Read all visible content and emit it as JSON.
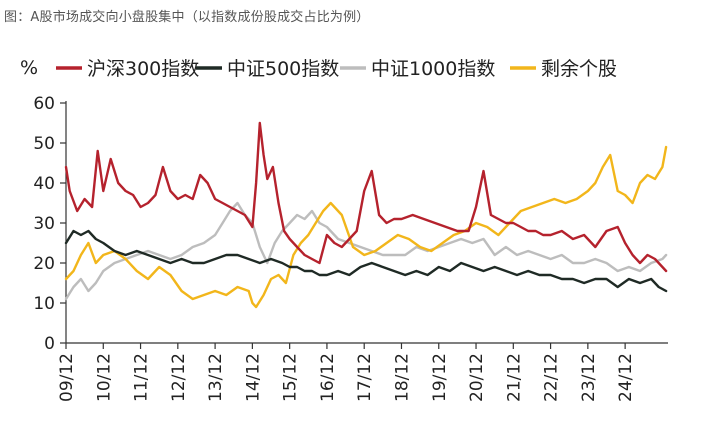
{
  "caption": "图：A股市场成交向小盘股集中（以指数成份股成交占比为例）",
  "chart_data": {
    "type": "line",
    "title": "",
    "ylabel": "%",
    "xlabel": "",
    "ylim": [
      0,
      60
    ],
    "yticks": [
      0,
      10,
      20,
      30,
      40,
      50,
      60
    ],
    "xlim": [
      2009.0,
      2025.15
    ],
    "xticks": [
      "09/12",
      "10/12",
      "11/12",
      "12/12",
      "13/12",
      "14/12",
      "15/12",
      "16/12",
      "17/12",
      "18/12",
      "19/12",
      "20/12",
      "21/12",
      "22/12",
      "23/12",
      "24/12"
    ],
    "grid": false,
    "legend_position": "top",
    "series": [
      {
        "name": "沪深300指数",
        "color": "#b5222d",
        "x": [
          2009.0,
          2009.1,
          2009.3,
          2009.5,
          2009.7,
          2009.85,
          2010.0,
          2010.2,
          2010.4,
          2010.6,
          2010.8,
          2011.0,
          2011.2,
          2011.4,
          2011.6,
          2011.8,
          2012.0,
          2012.2,
          2012.4,
          2012.6,
          2012.8,
          2013.0,
          2013.2,
          2013.4,
          2013.6,
          2013.8,
          2014.0,
          2014.1,
          2014.2,
          2014.3,
          2014.4,
          2014.55,
          2014.7,
          2014.85,
          2015.0,
          2015.2,
          2015.4,
          2015.6,
          2015.8,
          2016.0,
          2016.2,
          2016.4,
          2016.6,
          2016.8,
          2017.0,
          2017.2,
          2017.4,
          2017.6,
          2017.8,
          2018.0,
          2018.3,
          2018.6,
          2018.9,
          2019.2,
          2019.5,
          2019.8,
          2020.0,
          2020.2,
          2020.4,
          2020.6,
          2020.8,
          2021.0,
          2021.2,
          2021.4,
          2021.6,
          2021.8,
          2022.0,
          2022.3,
          2022.6,
          2022.9,
          2023.2,
          2023.5,
          2023.8,
          2024.0,
          2024.2,
          2024.4,
          2024.6,
          2024.8,
          2025.0,
          2025.1
        ],
        "values": [
          44,
          38,
          33,
          36,
          34,
          48,
          38,
          46,
          40,
          38,
          37,
          34,
          35,
          37,
          44,
          38,
          36,
          37,
          36,
          42,
          40,
          36,
          35,
          34,
          33,
          32,
          29,
          40,
          55,
          47,
          41,
          44,
          35,
          28,
          26,
          24,
          22,
          21,
          20,
          27,
          25,
          24,
          26,
          28,
          38,
          43,
          32,
          30,
          31,
          31,
          32,
          31,
          30,
          29,
          28,
          28,
          34,
          43,
          32,
          31,
          30,
          30,
          29,
          28,
          28,
          27,
          27,
          28,
          26,
          27,
          24,
          28,
          29,
          25,
          22,
          20,
          22,
          21,
          19,
          18
        ]
      },
      {
        "name": "中证500指数",
        "color": "#1f2a25",
        "x": [
          2009.0,
          2009.2,
          2009.4,
          2009.6,
          2009.8,
          2010.0,
          2010.3,
          2010.6,
          2010.9,
          2011.2,
          2011.5,
          2011.8,
          2012.1,
          2012.4,
          2012.7,
          2013.0,
          2013.3,
          2013.6,
          2013.9,
          2014.2,
          2014.5,
          2014.8,
          2015.0,
          2015.2,
          2015.4,
          2015.6,
          2015.8,
          2016.0,
          2016.3,
          2016.6,
          2016.9,
          2017.2,
          2017.5,
          2017.8,
          2018.1,
          2018.4,
          2018.7,
          2019.0,
          2019.3,
          2019.6,
          2019.9,
          2020.2,
          2020.5,
          2020.8,
          2021.1,
          2021.4,
          2021.7,
          2022.0,
          2022.3,
          2022.6,
          2022.9,
          2023.2,
          2023.5,
          2023.8,
          2024.1,
          2024.4,
          2024.7,
          2024.9,
          2025.1
        ],
        "values": [
          25,
          28,
          27,
          28,
          26,
          25,
          23,
          22,
          23,
          22,
          21,
          20,
          21,
          20,
          20,
          21,
          22,
          22,
          21,
          20,
          21,
          20,
          19,
          19,
          18,
          18,
          17,
          17,
          18,
          17,
          19,
          20,
          19,
          18,
          17,
          18,
          17,
          19,
          18,
          20,
          19,
          18,
          19,
          18,
          17,
          18,
          17,
          17,
          16,
          16,
          15,
          16,
          16,
          14,
          16,
          15,
          16,
          14,
          13
        ]
      },
      {
        "name": "中证1000指数",
        "color": "#bdbdbd",
        "x": [
          2009.0,
          2009.2,
          2009.4,
          2009.6,
          2009.8,
          2010.0,
          2010.3,
          2010.6,
          2010.9,
          2011.2,
          2011.5,
          2011.8,
          2012.1,
          2012.4,
          2012.7,
          2013.0,
          2013.2,
          2013.4,
          2013.6,
          2013.8,
          2014.0,
          2014.2,
          2014.4,
          2014.6,
          2014.8,
          2015.0,
          2015.2,
          2015.4,
          2015.6,
          2015.8,
          2016.0,
          2016.3,
          2016.6,
          2016.9,
          2017.2,
          2017.5,
          2017.8,
          2018.1,
          2018.4,
          2018.7,
          2019.0,
          2019.3,
          2019.6,
          2019.9,
          2020.2,
          2020.5,
          2020.8,
          2021.1,
          2021.4,
          2021.7,
          2022.0,
          2022.3,
          2022.6,
          2022.9,
          2023.2,
          2023.5,
          2023.8,
          2024.1,
          2024.4,
          2024.7,
          2025.0,
          2025.1
        ],
        "values": [
          11,
          14,
          16,
          13,
          15,
          18,
          20,
          21,
          22,
          23,
          22,
          21,
          22,
          24,
          25,
          27,
          30,
          33,
          35,
          32,
          30,
          24,
          20,
          25,
          28,
          30,
          32,
          31,
          33,
          30,
          29,
          26,
          25,
          24,
          23,
          22,
          22,
          22,
          24,
          23,
          24,
          25,
          26,
          25,
          26,
          22,
          24,
          22,
          23,
          22,
          21,
          22,
          20,
          20,
          21,
          20,
          18,
          19,
          18,
          20,
          21,
          22
        ]
      },
      {
        "name": "剩余个股",
        "color": "#f2b61b",
        "x": [
          2009.0,
          2009.2,
          2009.4,
          2009.6,
          2009.8,
          2010.0,
          2010.3,
          2010.6,
          2010.9,
          2011.2,
          2011.5,
          2011.8,
          2012.1,
          2012.4,
          2012.7,
          2013.0,
          2013.3,
          2013.6,
          2013.9,
          2014.0,
          2014.1,
          2014.3,
          2014.5,
          2014.7,
          2014.9,
          2015.1,
          2015.3,
          2015.5,
          2015.7,
          2015.9,
          2016.1,
          2016.4,
          2016.7,
          2017.0,
          2017.3,
          2017.6,
          2017.9,
          2018.2,
          2018.5,
          2018.8,
          2019.1,
          2019.4,
          2019.7,
          2020.0,
          2020.3,
          2020.6,
          2020.9,
          2021.2,
          2021.5,
          2021.8,
          2022.1,
          2022.4,
          2022.7,
          2023.0,
          2023.2,
          2023.4,
          2023.6,
          2023.8,
          2024.0,
          2024.2,
          2024.4,
          2024.6,
          2024.8,
          2025.0,
          2025.1
        ],
        "values": [
          16,
          18,
          22,
          25,
          20,
          22,
          23,
          21,
          18,
          16,
          19,
          17,
          13,
          11,
          12,
          13,
          12,
          14,
          13,
          10,
          9,
          12,
          16,
          17,
          15,
          22,
          25,
          27,
          30,
          33,
          35,
          32,
          24,
          22,
          23,
          25,
          27,
          26,
          24,
          23,
          25,
          27,
          28,
          30,
          29,
          27,
          30,
          33,
          34,
          35,
          36,
          35,
          36,
          38,
          40,
          44,
          47,
          38,
          37,
          35,
          40,
          42,
          41,
          44,
          49
        ]
      }
    ]
  }
}
